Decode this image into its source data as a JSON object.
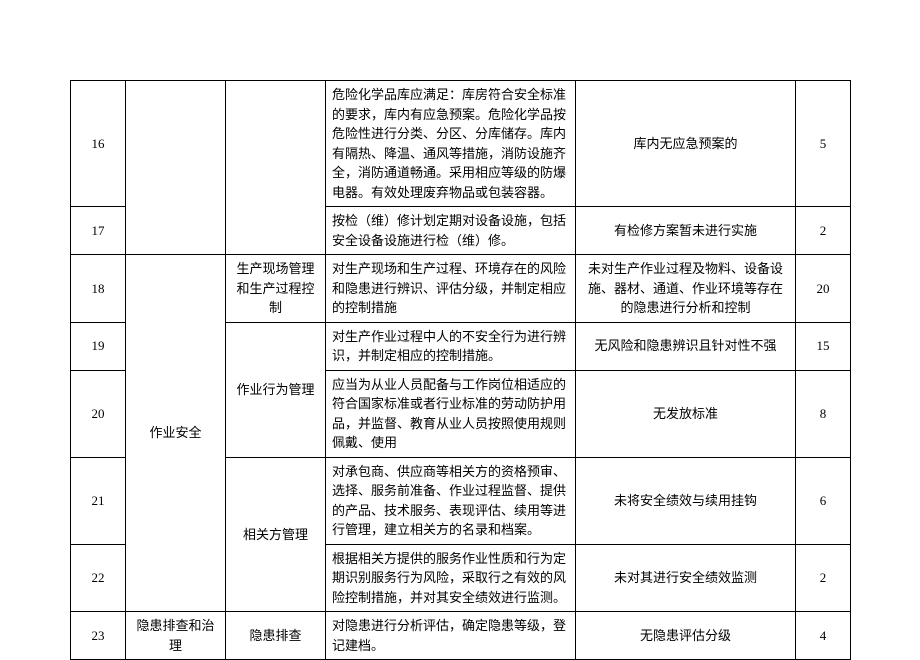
{
  "table": {
    "border_color": "#000000",
    "background_color": "#ffffff",
    "font_family": "SimSun",
    "font_size_pt": 10,
    "rows": [
      {
        "num": "16",
        "desc": "危险化学品库应满足：库房符合安全标准的要求，库内有应急预案。危险化学品按危险性进行分类、分区、分库储存。库内有隔热、降温、通风等措施，消防设施齐全，消防通道畅通。采用相应等级的防爆电器。有效处理废弃物品或包装容器。",
        "issue": "库内无应急预案的",
        "score": "5"
      },
      {
        "num": "17",
        "desc": "按检（维）修计划定期对设备设施，包括安全设备设施进行检（维）修。",
        "issue": "有检修方案暂未进行实施",
        "score": "2"
      },
      {
        "num": "18",
        "cat1": "作业安全",
        "cat2": "生产现场管理和生产过程控制",
        "desc": "对生产现场和生产过程、环境存在的风险和隐患进行辨识、评估分级，并制定相应的控制措施",
        "issue": "未对生产作业过程及物料、设备设施、器材、通道、作业环境等存在的隐患进行分析和控制",
        "score": "20"
      },
      {
        "num": "19",
        "cat2": "作业行为管理",
        "desc": "对生产作业过程中人的不安全行为进行辨识，并制定相应的控制措施。",
        "issue": "无风险和隐患辨识且针对性不强",
        "score": "15"
      },
      {
        "num": "20",
        "desc": "应当为从业人员配备与工作岗位相适应的符合国家标准或者行业标准的劳动防护用品，并监督、教育从业人员按照使用规则佩戴、使用",
        "issue": "无发放标准",
        "score": "8"
      },
      {
        "num": "21",
        "cat2": "相关方管理",
        "desc": "对承包商、供应商等相关方的资格预审、选择、服务前准备、作业过程监督、提供的产品、技术服务、表现评估、续用等进行管理，建立相关方的名录和档案。",
        "issue": "未将安全绩效与续用挂钩",
        "score": "6"
      },
      {
        "num": "22",
        "desc": "根据相关方提供的服务作业性质和行为定期识别服务行为风险，采取行之有效的风险控制措施，并对其安全绩效进行监测。",
        "issue": "未对其进行安全绩效监测",
        "score": "2"
      },
      {
        "num": "23",
        "cat1": "隐患排查和治理",
        "cat2": "隐患排查",
        "desc": "对隐患进行分析评估，确定隐患等级，登记建档。",
        "issue": "无隐患评估分级",
        "score": "4"
      }
    ]
  }
}
